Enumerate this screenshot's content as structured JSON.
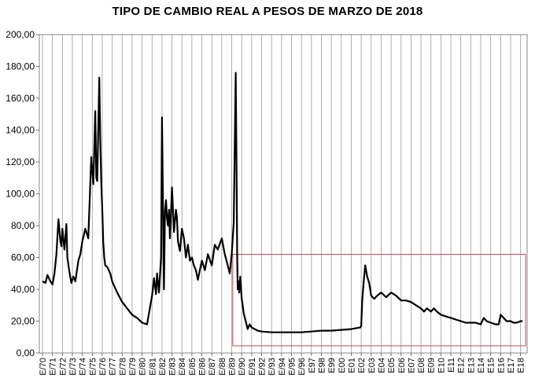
{
  "chart_data": {
    "type": "line",
    "title": "TIPO DE CAMBIO REAL A PESOS DE MARZO DE 2018",
    "xlabel": "",
    "ylabel": "",
    "ylim": [
      0,
      200
    ],
    "xlim": [
      1970,
      2018.5
    ],
    "grid": "vertical lines at each January",
    "legend": "none",
    "y_tick_labels": [
      "0,00",
      "20,00",
      "40,00",
      "60,00",
      "80,00",
      "100,00",
      "120,00",
      "140,00",
      "160,00",
      "180,00",
      "200,00"
    ],
    "x_tick_labels": [
      "E/70",
      "E/71",
      "E/72",
      "E/73",
      "E/74",
      "E/75",
      "E/76",
      "E/77",
      "E/78",
      "E/79",
      "E/80",
      "E/81",
      "E/82",
      "E/83",
      "E/84",
      "E/85",
      "E/86",
      "E/87",
      "E/88",
      "E/89",
      "E/90",
      "E/91",
      "E/92",
      "E/93",
      "E/94",
      "E/95",
      "E/96",
      "E97",
      "E98",
      "E99",
      "E00",
      "E01",
      "E02",
      "E03",
      "E04",
      "E05",
      "E06",
      "E07",
      "E08",
      "E09",
      "E10",
      "E11",
      "E12",
      "E13",
      "E14",
      "E15",
      "E16",
      "E17",
      "E18"
    ],
    "series": [
      {
        "x": [
          1970.0,
          1970.3,
          1970.5,
          1970.8,
          1971.0,
          1971.2,
          1971.4,
          1971.6,
          1971.8,
          1971.9,
          1972.0,
          1972.2,
          1972.4,
          1972.5,
          1972.7,
          1972.9,
          1973.1,
          1973.3,
          1973.6,
          1973.8,
          1974.0,
          1974.3,
          1974.6,
          1974.9,
          1975.1,
          1975.3,
          1975.4,
          1975.5,
          1975.6,
          1975.7,
          1975.8,
          1975.9,
          1976.0,
          1976.1,
          1976.2,
          1976.3,
          1976.5,
          1976.8,
          1977.0,
          1977.5,
          1978.0,
          1978.5,
          1979.0,
          1979.5,
          1980.0,
          1980.5,
          1981.0,
          1981.2,
          1981.4,
          1981.5,
          1981.7,
          1981.9,
          1982.0,
          1982.2,
          1982.3,
          1982.4,
          1982.5,
          1982.6,
          1982.7,
          1982.8,
          1983.0,
          1983.2,
          1983.4,
          1983.5,
          1983.6,
          1983.8,
          1984.0,
          1984.2,
          1984.4,
          1984.6,
          1984.8,
          1985.0,
          1985.2,
          1985.4,
          1985.6,
          1985.8,
          1986.0,
          1986.3,
          1986.6,
          1987.0,
          1987.3,
          1987.6,
          1988.0,
          1988.3,
          1988.6,
          1988.8,
          1989.0,
          1989.2,
          1989.4,
          1989.5,
          1989.55,
          1989.6,
          1989.7,
          1989.75,
          1989.85,
          1990.0,
          1990.1,
          1990.2,
          1990.4,
          1990.6,
          1990.8,
          1991.0,
          1991.3,
          1991.6,
          1992.0,
          1993.0,
          1994.0,
          1995.0,
          1996.0,
          1997.0,
          1998.0,
          1999.0,
          2000.0,
          2001.0,
          2001.9,
          2002.0,
          2002.1,
          2002.25,
          2002.4,
          2002.6,
          2002.8,
          2003.0,
          2003.3,
          2003.6,
          2004.0,
          2004.5,
          2005.0,
          2005.5,
          2006.0,
          2006.5,
          2007.0,
          2007.5,
          2008.0,
          2008.3,
          2008.6,
          2009.0,
          2009.3,
          2009.6,
          2010.0,
          2010.5,
          2011.0,
          2011.5,
          2012.0,
          2012.5,
          2013.0,
          2013.5,
          2014.0,
          2014.3,
          2014.6,
          2015.0,
          2015.5,
          2015.8,
          2016.0,
          2016.3,
          2016.6,
          2017.0,
          2017.3,
          2017.6,
          2018.0,
          2018.2
        ],
        "y": [
          45,
          44,
          49,
          45,
          43,
          50,
          62,
          84,
          70,
          67,
          78,
          65,
          81,
          60,
          51,
          44,
          48,
          45,
          58,
          62,
          70,
          78,
          72,
          123,
          106,
          152,
          110,
          108,
          140,
          173,
          135,
          108,
          90,
          70,
          60,
          55,
          54,
          50,
          45,
          38,
          32,
          28,
          24,
          22,
          19,
          18,
          36,
          47,
          37,
          50,
          38,
          60,
          148,
          40,
          89,
          96,
          85,
          80,
          90,
          72,
          104,
          76,
          90,
          85,
          70,
          64,
          78,
          72,
          60,
          68,
          58,
          60,
          55,
          52,
          46,
          52,
          58,
          52,
          62,
          55,
          68,
          65,
          72,
          62,
          55,
          50,
          62,
          82,
          176,
          100,
          60,
          40,
          45,
          38,
          48,
          34,
          30,
          25,
          20,
          15,
          18,
          16,
          15,
          14,
          13.5,
          13,
          13,
          13,
          13,
          13.5,
          14,
          14,
          14.5,
          15,
          16,
          17,
          33,
          45,
          55,
          48,
          44,
          36,
          34,
          36,
          38,
          35,
          38,
          36,
          33,
          33,
          32,
          30,
          28,
          26,
          28,
          26,
          28,
          26,
          24,
          23,
          22,
          21,
          20,
          19,
          19,
          19,
          18,
          22,
          20,
          19,
          18,
          18,
          24,
          22,
          20,
          20,
          19,
          19,
          20,
          20
        ]
      }
    ]
  }
}
